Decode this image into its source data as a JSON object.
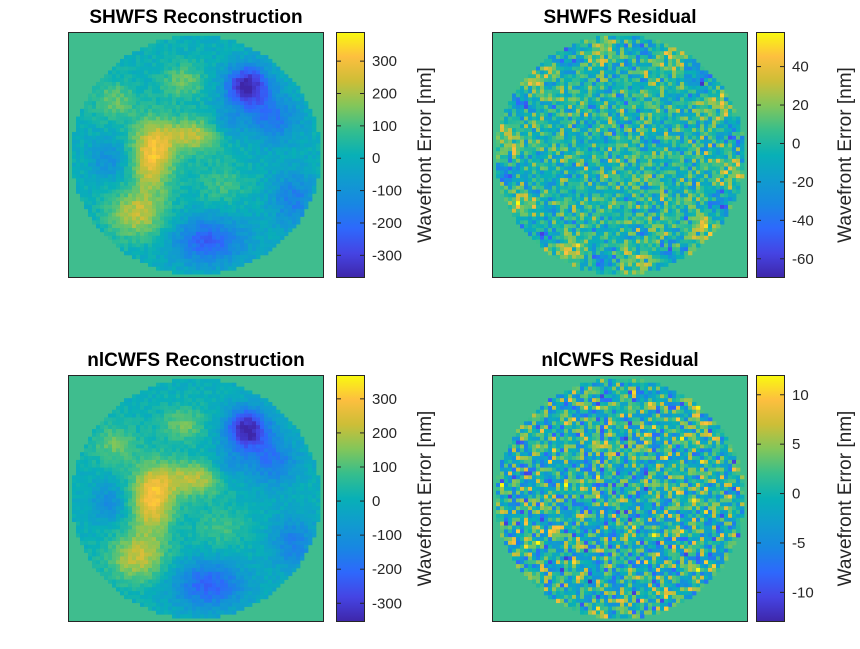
{
  "figure": {
    "width": 860,
    "height": 649
  },
  "colors": {
    "disk_background": "#3fbd8e",
    "frame": "#262626"
  },
  "colormap": "parula",
  "chart_data": [
    {
      "type": "heatmap",
      "title": "SHWFS Reconstruction",
      "colorbar_label": "Wavefront Error [nm]",
      "clim": [
        -370,
        390
      ],
      "colorbar_ticks": [
        -300,
        -200,
        -100,
        0,
        100,
        200,
        300
      ],
      "colorbar_ticklabels": [
        "-300",
        "-200",
        "-100",
        "0",
        "100",
        "200",
        "300"
      ],
      "grid_size": 64,
      "pattern": "smooth",
      "features": [
        {
          "cx": 0.33,
          "cy": 0.5,
          "sx": 0.06,
          "sy": 0.1,
          "a": 300
        },
        {
          "cx": 0.27,
          "cy": 0.74,
          "sx": 0.08,
          "sy": 0.07,
          "a": 220
        },
        {
          "cx": 0.5,
          "cy": 0.42,
          "sx": 0.09,
          "sy": 0.05,
          "a": 220
        },
        {
          "cx": 0.45,
          "cy": 0.2,
          "sx": 0.06,
          "sy": 0.05,
          "a": 140
        },
        {
          "cx": 0.18,
          "cy": 0.28,
          "sx": 0.06,
          "sy": 0.06,
          "a": 130
        },
        {
          "cx": 0.6,
          "cy": 0.62,
          "sx": 0.07,
          "sy": 0.06,
          "a": 90
        },
        {
          "cx": 0.7,
          "cy": 0.22,
          "sx": 0.06,
          "sy": 0.06,
          "a": -380
        },
        {
          "cx": 0.8,
          "cy": 0.35,
          "sx": 0.07,
          "sy": 0.07,
          "a": -180
        },
        {
          "cx": 0.55,
          "cy": 0.85,
          "sx": 0.1,
          "sy": 0.07,
          "a": -230
        },
        {
          "cx": 0.88,
          "cy": 0.68,
          "sx": 0.06,
          "sy": 0.08,
          "a": -160
        },
        {
          "cx": 0.16,
          "cy": 0.52,
          "sx": 0.05,
          "sy": 0.06,
          "a": -120
        },
        {
          "cx": 0.62,
          "cy": 0.38,
          "sx": 0.05,
          "sy": 0.05,
          "a": -120
        }
      ],
      "noise_amplitude": 35
    },
    {
      "type": "heatmap",
      "title": "SHWFS Residual",
      "colorbar_label": "Wavefront Error [nm]",
      "clim": [
        -70,
        58
      ],
      "colorbar_ticks": [
        -60,
        -40,
        -20,
        0,
        20,
        40
      ],
      "colorbar_ticklabels": [
        "-60",
        "-40",
        "-20",
        "0",
        "20",
        "40"
      ],
      "grid_size": 64,
      "pattern": "noise",
      "noise_amplitude": 16,
      "rim_amplitude": 22
    },
    {
      "type": "heatmap",
      "title": "nlCWFS Reconstruction",
      "colorbar_label": "Wavefront Error [nm]",
      "clim": [
        -355,
        370
      ],
      "colorbar_ticks": [
        -300,
        -200,
        -100,
        0,
        100,
        200,
        300
      ],
      "colorbar_ticklabels": [
        "-300",
        "-200",
        "-100",
        "0",
        "100",
        "200",
        "300"
      ],
      "grid_size": 64,
      "pattern": "smooth",
      "features": [
        {
          "cx": 0.33,
          "cy": 0.5,
          "sx": 0.06,
          "sy": 0.1,
          "a": 290
        },
        {
          "cx": 0.27,
          "cy": 0.74,
          "sx": 0.08,
          "sy": 0.07,
          "a": 210
        },
        {
          "cx": 0.5,
          "cy": 0.42,
          "sx": 0.09,
          "sy": 0.05,
          "a": 210
        },
        {
          "cx": 0.45,
          "cy": 0.2,
          "sx": 0.06,
          "sy": 0.05,
          "a": 135
        },
        {
          "cx": 0.18,
          "cy": 0.28,
          "sx": 0.06,
          "sy": 0.06,
          "a": 125
        },
        {
          "cx": 0.6,
          "cy": 0.62,
          "sx": 0.07,
          "sy": 0.06,
          "a": 85
        },
        {
          "cx": 0.7,
          "cy": 0.22,
          "sx": 0.06,
          "sy": 0.06,
          "a": -360
        },
        {
          "cx": 0.8,
          "cy": 0.35,
          "sx": 0.07,
          "sy": 0.07,
          "a": -170
        },
        {
          "cx": 0.55,
          "cy": 0.85,
          "sx": 0.1,
          "sy": 0.07,
          "a": -220
        },
        {
          "cx": 0.88,
          "cy": 0.68,
          "sx": 0.06,
          "sy": 0.08,
          "a": -150
        },
        {
          "cx": 0.16,
          "cy": 0.52,
          "sx": 0.05,
          "sy": 0.06,
          "a": -115
        },
        {
          "cx": 0.62,
          "cy": 0.38,
          "sx": 0.05,
          "sy": 0.05,
          "a": -115
        }
      ],
      "noise_amplitude": 30
    },
    {
      "type": "heatmap",
      "title": "nlCWFS Residual",
      "colorbar_label": "Wavefront Error [nm]",
      "clim": [
        -13,
        12
      ],
      "colorbar_ticks": [
        -10,
        -5,
        0,
        5,
        10
      ],
      "colorbar_ticklabels": [
        "-10",
        "-5",
        "0",
        "5",
        "10"
      ],
      "grid_size": 64,
      "pattern": "noise",
      "noise_amplitude": 4.5,
      "rim_amplitude": 0
    }
  ]
}
